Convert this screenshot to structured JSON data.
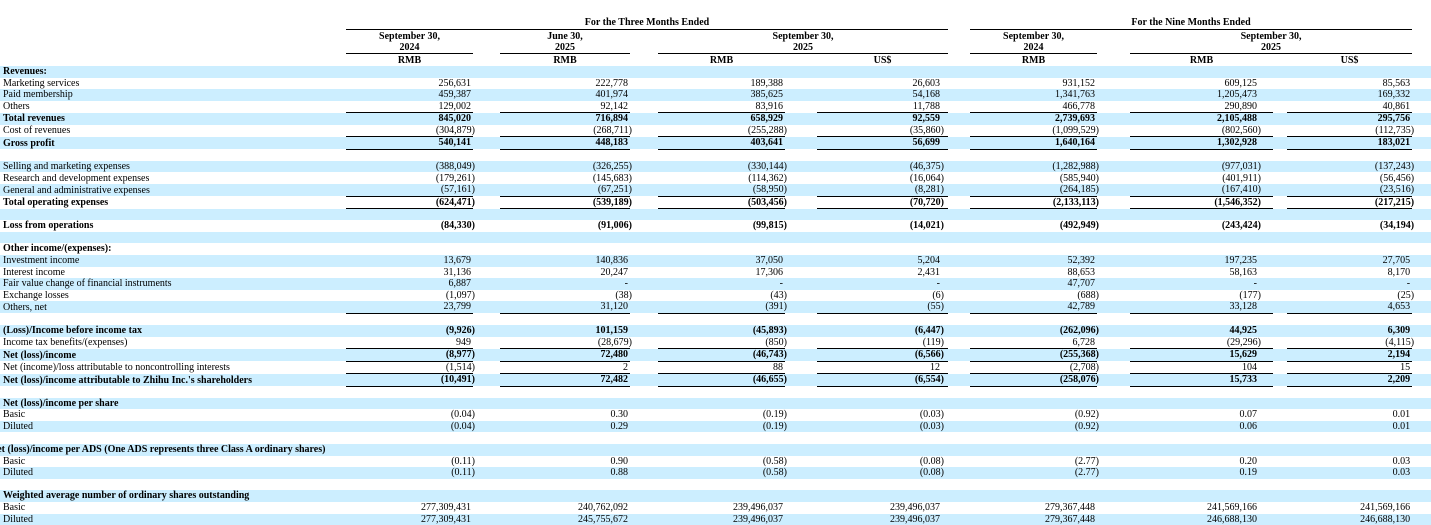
{
  "page": {
    "background": "#ffffff",
    "shade_color": "#cceeff",
    "text_color": "#000000"
  },
  "header": {
    "three_months_title": "For the Three Months Ended",
    "nine_months_title": "For the Nine Months Ended",
    "currency_rmb": "RMB",
    "currency_usd": "US$",
    "periods": {
      "tm_col1": {
        "line1": "September 30,",
        "line2": "2024"
      },
      "tm_col2": {
        "line1": "June 30,",
        "line2": "2025"
      },
      "tm_col34": {
        "line1": "September 30,",
        "line2": "2025"
      },
      "nm_col1": {
        "line1": "September 30,",
        "line2": "2024"
      },
      "nm_col23": {
        "line1": "September 30,",
        "line2": "2025"
      }
    }
  },
  "rows": [
    {
      "label": "Revenues:",
      "bold": true,
      "shaded": true,
      "values": [
        "",
        "",
        "",
        "",
        "",
        "",
        ""
      ]
    },
    {
      "label": "Marketing services",
      "indent": 1,
      "shaded": false,
      "values": [
        "256,631",
        "222,778",
        "189,388",
        "26,603",
        "931,152",
        "609,125",
        "85,563"
      ]
    },
    {
      "label": "Paid membership",
      "indent": 1,
      "shaded": true,
      "values": [
        "459,387",
        "401,974",
        "385,625",
        "54,168",
        "1,341,763",
        "1,205,473",
        "169,332"
      ]
    },
    {
      "label": "Others",
      "indent": 1,
      "shaded": false,
      "underline": true,
      "values": [
        "129,002",
        "92,142",
        "83,916",
        "11,788",
        "466,778",
        "290,890",
        "40,861"
      ]
    },
    {
      "label": "Total revenues",
      "bold": true,
      "shaded": true,
      "values": [
        "845,020",
        "716,894",
        "658,929",
        "92,559",
        "2,739,693",
        "2,105,488",
        "295,756"
      ]
    },
    {
      "label": "Cost of revenues",
      "indent": 1,
      "shaded": false,
      "underline": true,
      "values": [
        "(304,879)",
        "(268,711)",
        "(255,288)",
        "(35,860)",
        "(1,099,529)",
        "(802,560)",
        "(112,735)"
      ]
    },
    {
      "label": "Gross profit",
      "bold": true,
      "shaded": true,
      "underline": true,
      "values": [
        "540,141",
        "448,183",
        "403,641",
        "56,699",
        "1,640,164",
        "1,302,928",
        "183,021"
      ]
    },
    {
      "blank": true,
      "shaded": false
    },
    {
      "label": "Selling and marketing expenses",
      "shaded": true,
      "values": [
        "(388,049)",
        "(326,255)",
        "(330,144)",
        "(46,375)",
        "(1,282,988)",
        "(977,031)",
        "(137,243)"
      ]
    },
    {
      "label": "Research and development expenses",
      "shaded": false,
      "values": [
        "(179,261)",
        "(145,683)",
        "(114,362)",
        "(16,064)",
        "(585,940)",
        "(401,911)",
        "(56,456)"
      ]
    },
    {
      "label": "General and administrative expenses",
      "shaded": true,
      "underline": true,
      "values": [
        "(57,161)",
        "(67,251)",
        "(58,950)",
        "(8,281)",
        "(264,185)",
        "(167,410)",
        "(23,516)"
      ]
    },
    {
      "label": "Total operating expenses",
      "bold": true,
      "shaded": false,
      "underline": true,
      "values": [
        "(624,471)",
        "(539,189)",
        "(503,456)",
        "(70,720)",
        "(2,133,113)",
        "(1,546,352)",
        "(217,215)"
      ]
    },
    {
      "blank": true,
      "shaded": true
    },
    {
      "label": "Loss from operations",
      "bold": true,
      "shaded": false,
      "values": [
        "(84,330)",
        "(91,006)",
        "(99,815)",
        "(14,021)",
        "(492,949)",
        "(243,424)",
        "(34,194)"
      ]
    },
    {
      "blank": true,
      "shaded": true
    },
    {
      "label": "Other income/(expenses):",
      "bold": true,
      "shaded": false,
      "values": [
        "",
        "",
        "",
        "",
        "",
        "",
        ""
      ]
    },
    {
      "label": "Investment income",
      "shaded": true,
      "values": [
        "13,679",
        "140,836",
        "37,050",
        "5,204",
        "52,392",
        "197,235",
        "27,705"
      ]
    },
    {
      "label": "Interest income",
      "shaded": false,
      "values": [
        "31,136",
        "20,247",
        "17,306",
        "2,431",
        "88,653",
        "58,163",
        "8,170"
      ]
    },
    {
      "label": "Fair value change of financial instruments",
      "shaded": true,
      "values": [
        "6,887",
        "-",
        "-",
        "-",
        "47,707",
        "-",
        "-"
      ]
    },
    {
      "label": "Exchange losses",
      "shaded": false,
      "values": [
        "(1,097)",
        "(38)",
        "(43)",
        "(6)",
        "(688)",
        "(177)",
        "(25)"
      ]
    },
    {
      "label": "Others, net",
      "shaded": true,
      "underline": true,
      "values": [
        "23,799",
        "31,120",
        "(391)",
        "(55)",
        "42,789",
        "33,128",
        "4,653"
      ]
    },
    {
      "blank": true,
      "shaded": false
    },
    {
      "label": "(Loss)/Income before income tax",
      "bold": true,
      "shaded": true,
      "values": [
        "(9,926)",
        "101,159",
        "(45,893)",
        "(6,447)",
        "(262,096)",
        "44,925",
        "6,309"
      ]
    },
    {
      "label": "Income tax benefits/(expenses)",
      "shaded": false,
      "underline": true,
      "values": [
        "949",
        "(28,679)",
        "(850)",
        "(119)",
        "6,728",
        "(29,296)",
        "(4,115)"
      ]
    },
    {
      "label": "Net (loss)/income",
      "bold": true,
      "shaded": true,
      "underline": true,
      "values": [
        "(8,977)",
        "72,480",
        "(46,743)",
        "(6,566)",
        "(255,368)",
        "15,629",
        "2,194"
      ]
    },
    {
      "label": "Net (income)/loss attributable to noncontrolling interests",
      "shaded": false,
      "underline": true,
      "values": [
        "(1,514)",
        "2",
        "88",
        "12",
        "(2,708)",
        "104",
        "15"
      ]
    },
    {
      "label": "Net (loss)/income attributable to Zhihu Inc.'s shareholders",
      "bold": true,
      "shaded": true,
      "underline": true,
      "values": [
        "(10,491)",
        "72,482",
        "(46,655)",
        "(6,554)",
        "(258,076)",
        "15,733",
        "2,209"
      ]
    },
    {
      "blank": true,
      "shaded": false
    },
    {
      "label": "Net (loss)/income per share",
      "bold": true,
      "shaded": true,
      "values": [
        "",
        "",
        "",
        "",
        "",
        "",
        ""
      ]
    },
    {
      "label": "Basic",
      "indent": 1,
      "shaded": false,
      "values": [
        "(0.04)",
        "0.30",
        "(0.19)",
        "(0.03)",
        "(0.92)",
        "0.07",
        "0.01"
      ]
    },
    {
      "label": "Diluted",
      "indent": 1,
      "shaded": true,
      "values": [
        "(0.04)",
        "0.29",
        "(0.19)",
        "(0.03)",
        "(0.92)",
        "0.06",
        "0.01"
      ]
    },
    {
      "blank": true,
      "shaded": false
    },
    {
      "label": "Net (loss)/income per ADS (One ADS represents three Class A ordinary shares)",
      "bold": true,
      "shaded": true,
      "hang": true,
      "values": [
        "",
        "",
        "",
        "",
        "",
        "",
        ""
      ]
    },
    {
      "label": "Basic",
      "indent": 1,
      "shaded": false,
      "values": [
        "(0.11)",
        "0.90",
        "(0.58)",
        "(0.08)",
        "(2.77)",
        "0.20",
        "0.03"
      ]
    },
    {
      "label": "Diluted",
      "indent": 1,
      "shaded": true,
      "values": [
        "(0.11)",
        "0.88",
        "(0.58)",
        "(0.08)",
        "(2.77)",
        "0.19",
        "0.03"
      ]
    },
    {
      "blank": true,
      "shaded": false
    },
    {
      "label": "Weighted average number of ordinary shares outstanding",
      "bold": true,
      "shaded": true,
      "values": [
        "",
        "",
        "",
        "",
        "",
        "",
        ""
      ]
    },
    {
      "label": "Basic",
      "indent": 1,
      "shaded": false,
      "values": [
        "277,309,431",
        "240,762,092",
        "239,496,037",
        "239,496,037",
        "279,367,448",
        "241,569,166",
        "241,569,166"
      ]
    },
    {
      "label": "Diluted",
      "indent": 1,
      "shaded": true,
      "values": [
        "277,309,431",
        "245,755,672",
        "239,496,037",
        "239,496,037",
        "279,367,448",
        "246,688,130",
        "246,688,130"
      ]
    }
  ]
}
